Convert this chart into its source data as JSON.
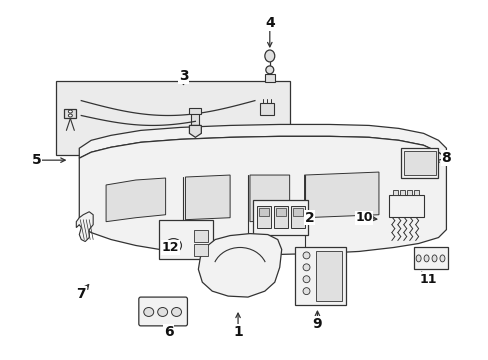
{
  "bg_color": "#ffffff",
  "line_color": "#333333",
  "fill_light": "#f2f2f2",
  "fill_mid": "#e0e0e0",
  "fill_dark": "#c8c8c8",
  "figsize": [
    4.89,
    3.6
  ],
  "dpi": 100,
  "callouts": [
    [
      "1",
      238,
      333,
      238,
      310
    ],
    [
      "2",
      310,
      218,
      290,
      218
    ],
    [
      "3",
      183,
      75,
      183,
      88
    ],
    [
      "4",
      270,
      22,
      270,
      50
    ],
    [
      "5",
      35,
      160,
      68,
      160
    ],
    [
      "6",
      168,
      333,
      168,
      312
    ],
    [
      "7",
      80,
      295,
      90,
      282
    ],
    [
      "8",
      448,
      158,
      432,
      162
    ],
    [
      "9",
      318,
      325,
      318,
      308
    ],
    [
      "10",
      365,
      218,
      382,
      220
    ],
    [
      "11",
      430,
      280,
      420,
      270
    ],
    [
      "12",
      170,
      248,
      188,
      250
    ]
  ]
}
